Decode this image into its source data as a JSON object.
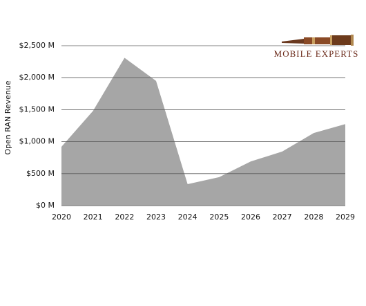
{
  "chart_data": {
    "type": "area",
    "y_label": "Open RAN  Revenue",
    "annotations": [
      "MOBILE EXPERTS"
    ],
    "categories": [
      "2020",
      "2021",
      "2022",
      "2023",
      "2024",
      "2025",
      "2026",
      "2027",
      "2028",
      "2029"
    ],
    "values": [
      920,
      1480,
      2310,
      1950,
      335,
      445,
      690,
      845,
      1135,
      1275
    ],
    "color": "#a6a6a6",
    "ylim": [
      0,
      2500
    ],
    "yticks": [
      {
        "value": 0,
        "label": "$0 M"
      },
      {
        "value": 500,
        "label": "$500 M"
      },
      {
        "value": 1000,
        "label": "$1,000 M"
      },
      {
        "value": 1500,
        "label": "$1,500 M"
      },
      {
        "value": 2000,
        "label": "$2,000 M"
      },
      {
        "value": 2500,
        "label": "$2,500 M"
      }
    ],
    "grid": true
  }
}
